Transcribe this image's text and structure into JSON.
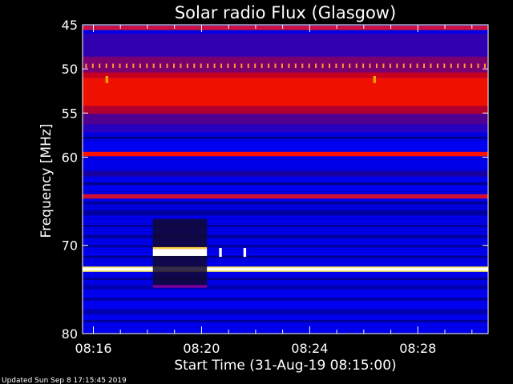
{
  "chart_data": {
    "type": "heatmap",
    "title": "Solar radio Flux (Glasgow)",
    "ylabel": "Frequency [MHz]",
    "xlabel": "Start Time (31-Aug-19 08:15:00)",
    "footer": "Updated Sun Sep  8 17:15:45 2019",
    "x_unit": "minutes after 08:15:00",
    "xlim": [
      0.6,
      15.6
    ],
    "ylim": [
      45,
      80
    ],
    "y_inverted": true,
    "x_ticks": [
      {
        "label": "08:16",
        "value": 1
      },
      {
        "label": "08:20",
        "value": 5
      },
      {
        "label": "08:24",
        "value": 9
      },
      {
        "label": "08:28",
        "value": 13
      }
    ],
    "y_ticks": [
      {
        "label": "45",
        "value": 45
      },
      {
        "label": "50",
        "value": 50
      },
      {
        "label": "55",
        "value": 55
      },
      {
        "label": "60",
        "value": 60
      },
      {
        "label": "70",
        "value": 70
      },
      {
        "label": "80",
        "value": 80
      }
    ],
    "colors": {
      "background": "#0000f0",
      "frame": "#ffffff",
      "text": "#ffffff"
    },
    "bands": [
      {
        "f0": 45.1,
        "f1": 45.6,
        "color": "#cc1040"
      },
      {
        "f0": 46.0,
        "f1": 48.6,
        "color": "#3000b0"
      },
      {
        "f0": 48.6,
        "f1": 50.4,
        "color": "#7a0070"
      },
      {
        "f0": 50.4,
        "f1": 51.0,
        "color": "#c80020"
      },
      {
        "f0": 51.0,
        "f1": 54.2,
        "color": "#f01000"
      },
      {
        "f0": 54.2,
        "f1": 55.1,
        "color": "#b00030"
      },
      {
        "f0": 55.1,
        "f1": 56.3,
        "color": "#500090"
      },
      {
        "f0": 56.3,
        "f1": 57.2,
        "color": "#2800c0"
      },
      {
        "f0": 59.4,
        "f1": 59.9,
        "color": "#ff1000"
      },
      {
        "f0": 61.6,
        "f1": 62.2,
        "color": "#1800a0"
      },
      {
        "f0": 64.2,
        "f1": 64.7,
        "color": "#d01030"
      },
      {
        "f0": 66.0,
        "f1": 66.6,
        "color": "#0000a0"
      },
      {
        "f0": 72.4,
        "f1": 73.0,
        "color": "#ffee60"
      },
      {
        "f0": 72.55,
        "f1": 72.85,
        "color": "#ffffff"
      },
      {
        "f0": 74.5,
        "f1": 75.0,
        "color": "#0000b0"
      },
      {
        "f0": 77.2,
        "f1": 77.8,
        "color": "#0000b0"
      }
    ],
    "dark_stripes": [
      {
        "f": 47.2,
        "color": "#000080"
      },
      {
        "f": 57.8,
        "color": "#00008c"
      },
      {
        "f": 63.0,
        "color": "#00008c"
      },
      {
        "f": 65.2,
        "color": "#000090"
      },
      {
        "f": 67.8,
        "color": "#000096"
      },
      {
        "f": 69.0,
        "color": "#000090"
      },
      {
        "f": 70.1,
        "color": "#000096"
      },
      {
        "f": 71.3,
        "color": "#000090"
      },
      {
        "f": 73.8,
        "color": "#000096"
      },
      {
        "f": 76.1,
        "color": "#000090"
      },
      {
        "f": 78.6,
        "color": "#000096"
      }
    ],
    "events": [
      {
        "t0": 3.2,
        "t1": 5.2,
        "f0": 67.0,
        "f1": 74.8,
        "color": "#100830",
        "kind": "block"
      },
      {
        "t0": 3.2,
        "t1": 5.2,
        "f0": 70.4,
        "f1": 71.2,
        "color": "#ffffff",
        "kind": "burst"
      },
      {
        "t0": 3.2,
        "t1": 5.2,
        "f0": 70.2,
        "f1": 70.4,
        "color": "#ffd040",
        "kind": "burst"
      },
      {
        "t0": 3.2,
        "t1": 5.2,
        "f0": 74.5,
        "f1": 74.8,
        "color": "#8000a0",
        "kind": "burst"
      },
      {
        "t0": 5.65,
        "t1": 5.75,
        "f0": 70.3,
        "f1": 71.3,
        "color": "#ffffff",
        "kind": "spike"
      },
      {
        "t0": 6.55,
        "t1": 6.65,
        "f0": 70.3,
        "f1": 71.3,
        "color": "#ffffff",
        "kind": "spike"
      },
      {
        "t0": 1.45,
        "t1": 1.55,
        "f0": 50.8,
        "f1": 51.6,
        "color": "#ffa000",
        "kind": "spike"
      },
      {
        "t0": 11.35,
        "t1": 11.45,
        "f0": 50.8,
        "f1": 51.6,
        "color": "#ffa000",
        "kind": "spike"
      }
    ],
    "periodic_marks": {
      "f0": 49.4,
      "f1": 49.9,
      "spacing_min": 0.25,
      "color": "#ff9a30"
    }
  }
}
